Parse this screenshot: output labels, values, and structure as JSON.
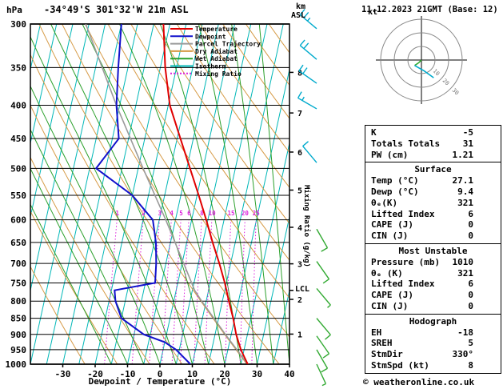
{
  "header": {
    "pressure_unit": "hPa",
    "station_title": "-34°49'S 301°32'W 21m ASL",
    "altitude_unit_line1": "km",
    "altitude_unit_line2": "ASL",
    "datetime_title": "11.12.2023 21GMT (Base: 12)"
  },
  "side_labels": {
    "mixing_ratio_axis": "Mixing Ratio (g/kg)",
    "lcl": "LCL",
    "hodograph_unit": "kt"
  },
  "footer": {
    "xaxis_title": "Dewpoint / Temperature (°C)",
    "copyright": "© weatheronline.co.uk"
  },
  "colors": {
    "temperature": "#e00000",
    "dewpoint": "#1111cc",
    "parcel": "#9a9a9a",
    "dry_adiabat": "#d69a45",
    "wet_adiabat": "#2ca02c",
    "isotherm": "#00b7b7",
    "mixing_ratio": "#dd22dd",
    "barb_upper": "#00aacc",
    "barb_lower": "#33aa33",
    "grid": "#000000"
  },
  "legend": [
    {
      "label": "Temperature",
      "color": "#e00000",
      "dash": ""
    },
    {
      "label": "Dewpoint",
      "color": "#1111cc",
      "dash": ""
    },
    {
      "label": "Parcel Trajectory",
      "color": "#9a9a9a",
      "dash": ""
    },
    {
      "label": "Dry Adiabat",
      "color": "#d69a45",
      "dash": ""
    },
    {
      "label": "Wet Adiabat",
      "color": "#2ca02c",
      "dash": ""
    },
    {
      "label": "Isotherm",
      "color": "#00b7b7",
      "dash": ""
    },
    {
      "label": "Mixing Ratio",
      "color": "#dd22dd",
      "dash": "2,2"
    }
  ],
  "chart_data": {
    "type": "skewt-logp",
    "title": "-34°49'S 301°32'W 21m ASL",
    "datetime": "11.12.2023 21GMT (Base: 12)",
    "pressure_axis": {
      "unit": "hPa",
      "ticks": [
        300,
        350,
        400,
        450,
        500,
        550,
        600,
        650,
        700,
        750,
        800,
        850,
        900,
        950,
        1000
      ],
      "scale": "log",
      "range": [
        300,
        1000
      ]
    },
    "temp_axis": {
      "unit": "°C",
      "label": "Dewpoint / Temperature (°C)",
      "ticks": [
        -30,
        -20,
        -10,
        0,
        10,
        20,
        30,
        40
      ],
      "range_at_surface": [
        -40,
        40
      ]
    },
    "altitude_ticks_km": [
      {
        "km": 1,
        "p": 899
      },
      {
        "km": 2,
        "p": 795
      },
      {
        "km": 3,
        "p": 701
      },
      {
        "km": 4,
        "p": 616
      },
      {
        "km": 5,
        "p": 540
      },
      {
        "km": 6,
        "p": 472
      },
      {
        "km": 7,
        "p": 411
      },
      {
        "km": 8,
        "p": 356
      }
    ],
    "isotherm_step_c": 5,
    "dry_adiabat_step_k": 10,
    "wet_adiabat_starts_c": [
      -15,
      -10,
      -5,
      0,
      5,
      10,
      15,
      20,
      25,
      30,
      35,
      40
    ],
    "mixing_ratio_lines_gkg": [
      1,
      2,
      3,
      4,
      5,
      6,
      8,
      10,
      15,
      20,
      25
    ],
    "lcl_pressure_hpa": 770,
    "temperature_profile": [
      {
        "p": 1000,
        "t": 27.1
      },
      {
        "p": 950,
        "t": 24
      },
      {
        "p": 900,
        "t": 21.5
      },
      {
        "p": 850,
        "t": 19.5
      },
      {
        "p": 800,
        "t": 17
      },
      {
        "p": 750,
        "t": 14.5
      },
      {
        "p": 700,
        "t": 11.5
      },
      {
        "p": 650,
        "t": 8
      },
      {
        "p": 600,
        "t": 4.5
      },
      {
        "p": 550,
        "t": 0.5
      },
      {
        "p": 500,
        "t": -4
      },
      {
        "p": 450,
        "t": -9
      },
      {
        "p": 400,
        "t": -14.5
      },
      {
        "p": 350,
        "t": -18.5
      },
      {
        "p": 300,
        "t": -22
      }
    ],
    "dewpoint_profile": [
      {
        "p": 1000,
        "t": 9.4
      },
      {
        "p": 950,
        "t": 4
      },
      {
        "p": 925,
        "t": 0
      },
      {
        "p": 900,
        "t": -7
      },
      {
        "p": 850,
        "t": -15
      },
      {
        "p": 800,
        "t": -18
      },
      {
        "p": 770,
        "t": -19
      },
      {
        "p": 750,
        "t": -7
      },
      {
        "p": 700,
        "t": -8
      },
      {
        "p": 650,
        "t": -9.5
      },
      {
        "p": 600,
        "t": -12
      },
      {
        "p": 550,
        "t": -20
      },
      {
        "p": 500,
        "t": -33
      },
      {
        "p": 450,
        "t": -28
      },
      {
        "p": 400,
        "t": -31
      },
      {
        "p": 350,
        "t": -33
      },
      {
        "p": 300,
        "t": -35
      }
    ],
    "parcel_profile": [
      {
        "p": 1000,
        "t": 27.1
      },
      {
        "p": 900,
        "t": 18.2
      },
      {
        "p": 800,
        "t": 8.6
      },
      {
        "p": 770,
        "t": 5.7
      },
      {
        "p": 700,
        "t": 0.5
      },
      {
        "p": 600,
        "t": -8
      },
      {
        "p": 500,
        "t": -18.5
      },
      {
        "p": 400,
        "t": -31
      },
      {
        "p": 300,
        "t": -46
      }
    ],
    "wind_barbs": [
      {
        "p": 305,
        "dir": 310,
        "spd": 25,
        "level": "upper"
      },
      {
        "p": 340,
        "dir": 310,
        "spd": 20,
        "level": "upper"
      },
      {
        "p": 370,
        "dir": 305,
        "spd": 20,
        "level": "upper"
      },
      {
        "p": 405,
        "dir": 300,
        "spd": 15,
        "level": "upper"
      },
      {
        "p": 490,
        "dir": 320,
        "spd": 10,
        "level": "upper"
      },
      {
        "p": 620,
        "dir": 150,
        "spd": 10,
        "level": "lower"
      },
      {
        "p": 695,
        "dir": 145,
        "spd": 10,
        "level": "lower"
      },
      {
        "p": 765,
        "dir": 140,
        "spd": 5,
        "level": "lower"
      },
      {
        "p": 850,
        "dir": 140,
        "spd": 10,
        "level": "lower"
      },
      {
        "p": 905,
        "dir": 145,
        "spd": 10,
        "level": "lower"
      },
      {
        "p": 950,
        "dir": 150,
        "spd": 10,
        "level": "lower"
      },
      {
        "p": 1000,
        "dir": 155,
        "spd": 8,
        "level": "lower"
      }
    ],
    "hodograph": {
      "unit": "kt",
      "rings_kt": [
        10,
        20,
        30
      ],
      "trace_low_kt": [
        [
          0,
          0
        ],
        [
          -2,
          -2
        ],
        [
          -5,
          -4
        ]
      ],
      "trace_high_kt": [
        [
          -5,
          -4
        ],
        [
          2,
          -8
        ],
        [
          9,
          -13
        ]
      ],
      "storm_motion": {
        "dir_deg": 330,
        "speed_kt": 8
      }
    }
  },
  "stats_panel": {
    "top": [
      {
        "label": "K",
        "value": "-5"
      },
      {
        "label": "Totals Totals",
        "value": "31"
      },
      {
        "label": "PW (cm)",
        "value": "1.21"
      }
    ],
    "surface": {
      "title": "Surface",
      "rows": [
        {
          "label": "Temp (°C)",
          "value": "27.1"
        },
        {
          "label": "Dewp (°C)",
          "value": "9.4"
        },
        {
          "label": "θₑ(K)",
          "value": "321"
        },
        {
          "label": "Lifted Index",
          "value": "6"
        },
        {
          "label": "CAPE (J)",
          "value": "0"
        },
        {
          "label": "CIN (J)",
          "value": "0"
        }
      ]
    },
    "most_unstable": {
      "title": "Most Unstable",
      "rows": [
        {
          "label": "Pressure (mb)",
          "value": "1010"
        },
        {
          "label": "θₑ (K)",
          "value": "321"
        },
        {
          "label": "Lifted Index",
          "value": "6"
        },
        {
          "label": "CAPE (J)",
          "value": "0"
        },
        {
          "label": "CIN (J)",
          "value": "0"
        }
      ]
    },
    "hodograph_section": {
      "title": "Hodograph",
      "rows": [
        {
          "label": "EH",
          "value": "-18"
        },
        {
          "label": "SREH",
          "value": "5"
        },
        {
          "label": "StmDir",
          "value": "330°"
        },
        {
          "label": "StmSpd (kt)",
          "value": "8"
        }
      ]
    }
  }
}
